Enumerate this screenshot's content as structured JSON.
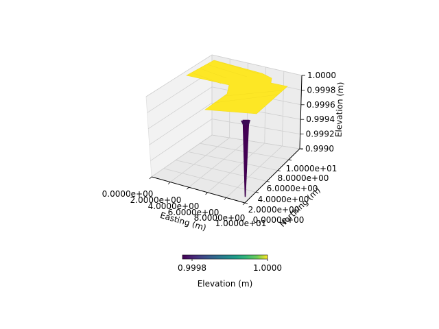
{
  "chart_data": {
    "type": "surface3d",
    "title": "",
    "xlabel": "Easting (m)",
    "ylabel": "Northing (m)",
    "zlabel": "Elevation (m)",
    "x_ticks": [
      "0.0000e+00",
      "2.0000e+00",
      "4.0000e+00",
      "6.0000e+00",
      "8.0000e+00",
      "1.0000e+01"
    ],
    "y_ticks": [
      "0.0000e+00",
      "2.0000e+00",
      "4.0000e+00",
      "6.0000e+00",
      "8.0000e+00",
      "1.0000e+01"
    ],
    "z_ticks": [
      "0.9990",
      "0.9992",
      "0.9994",
      "0.9996",
      "0.9998",
      "1.0000"
    ],
    "xlim": [
      0,
      10
    ],
    "ylim": [
      0,
      10
    ],
    "zlim": [
      0.999,
      1.0
    ],
    "surface": {
      "plateau_elevation": 1.0,
      "sink_elevation": 0.9989,
      "sink_location": [
        10,
        2
      ],
      "plateau_color": "#fde725",
      "sink_color": "#440154"
    },
    "colorbar": {
      "label": "Elevation (m)",
      "tick_labels": [
        "0.9998",
        "1.0000"
      ],
      "range": [
        0.99975,
        1.0
      ],
      "colormap": "viridis"
    },
    "grid": true
  }
}
